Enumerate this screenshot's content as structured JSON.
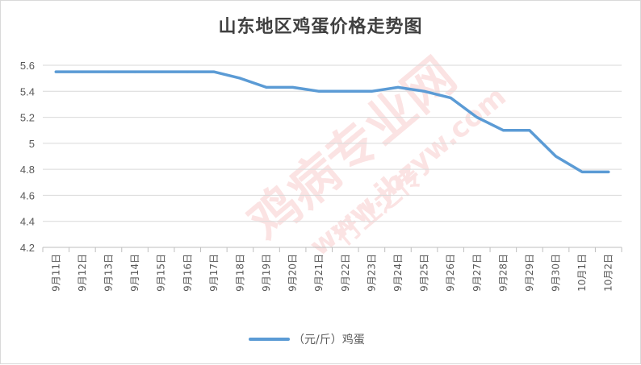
{
  "chart_data": {
    "type": "line",
    "title": "山东地区鸡蛋价格走势图",
    "categories": [
      "9月11日",
      "9月12日",
      "9月13日",
      "9月14日",
      "9月15日",
      "9月16日",
      "9月17日",
      "9月18日",
      "9月19日",
      "9月20日",
      "9月21日",
      "9月22日",
      "9月23日",
      "9月24日",
      "9月25日",
      "9月26日",
      "9月27日",
      "9月28日",
      "9月29日",
      "9月30日",
      "10月1日",
      "10月2日"
    ],
    "series": [
      {
        "name": "（元/斤）鸡蛋",
        "values": [
          5.55,
          5.55,
          5.55,
          5.55,
          5.55,
          5.55,
          5.55,
          5.5,
          5.43,
          5.43,
          5.4,
          5.4,
          5.4,
          5.43,
          5.4,
          5.35,
          5.2,
          5.1,
          5.1,
          4.9,
          4.78,
          4.78
        ],
        "color": "#5b9bd5"
      }
    ],
    "ylim": [
      4.2,
      5.6
    ],
    "yticks": [
      "5.6",
      "5.4",
      "5.2",
      "5",
      "4.8",
      "4.6",
      "4.4",
      "4.2"
    ],
    "grid": true,
    "legend": "bottom"
  },
  "watermark": {
    "brand": "鸡病专业网",
    "url": "www.jbzyw.com",
    "tagline": "行业之传"
  }
}
